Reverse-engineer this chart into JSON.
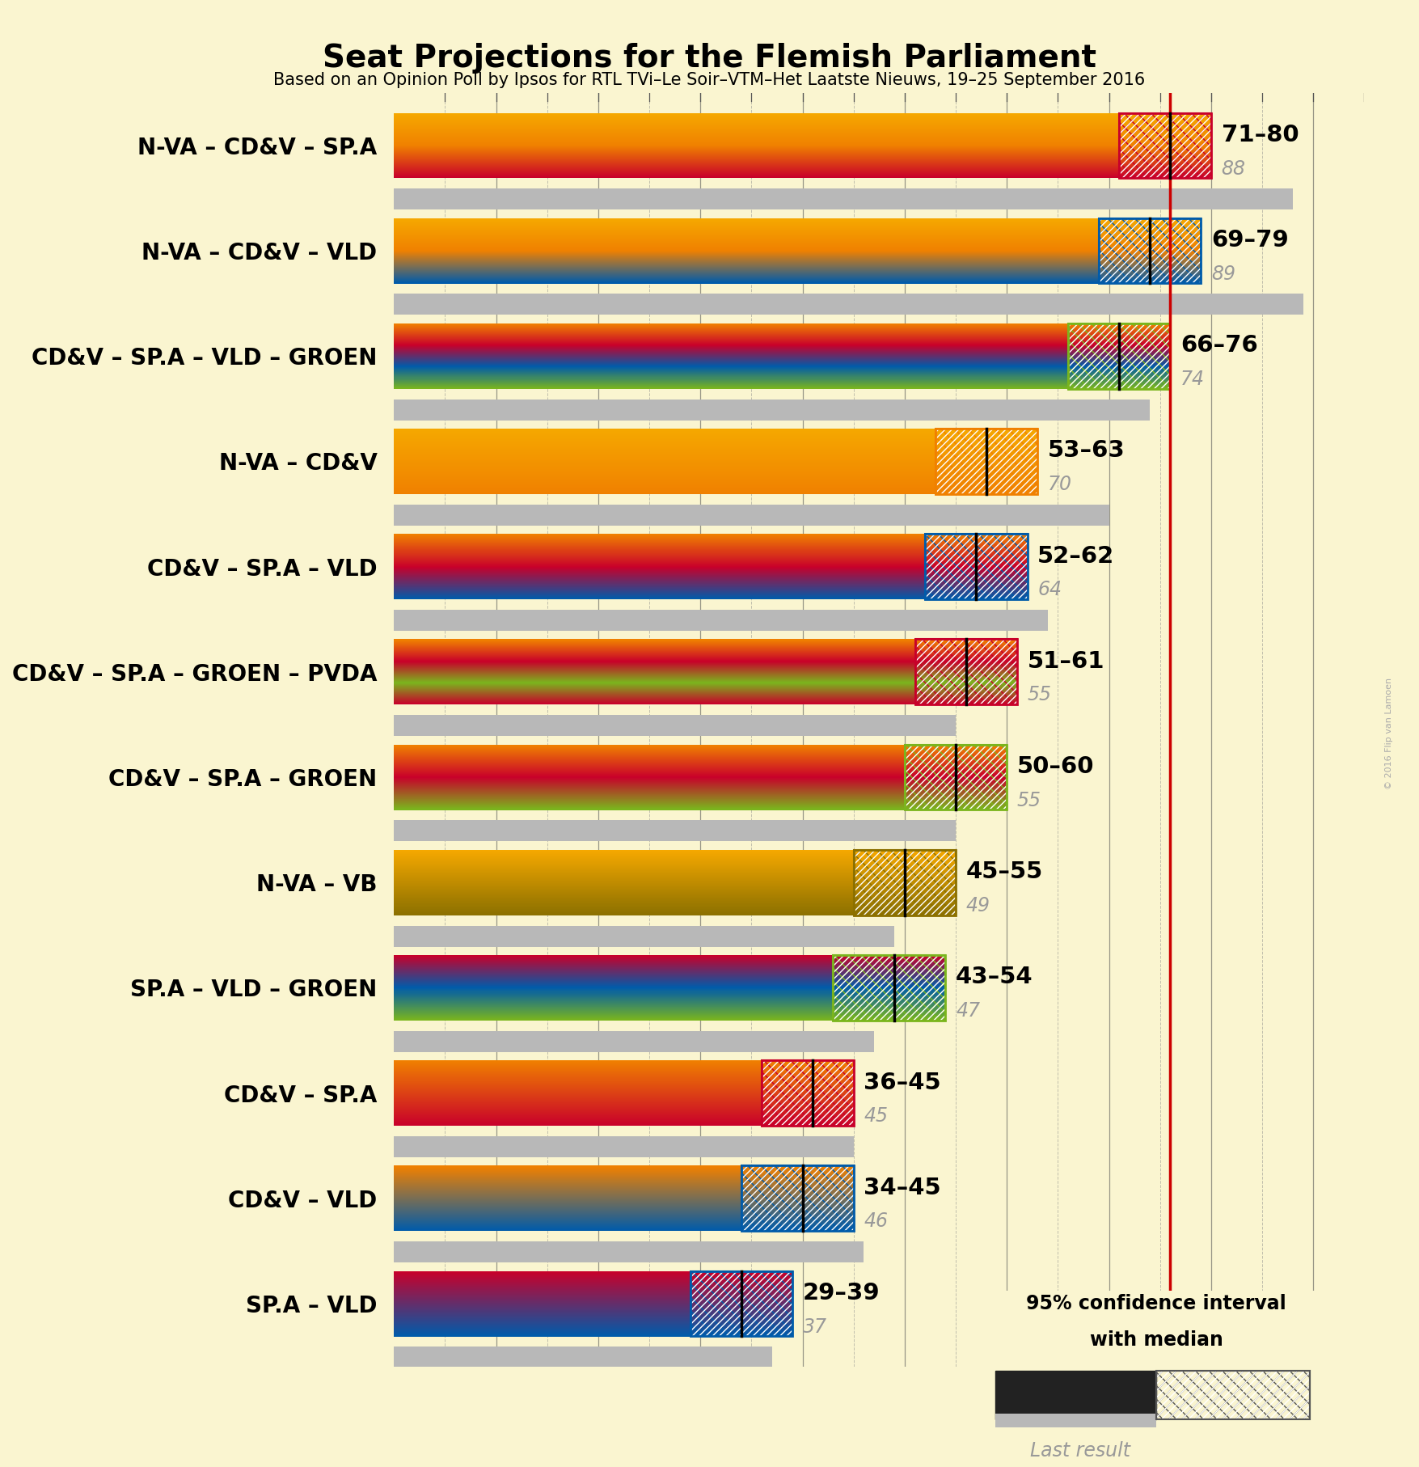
{
  "title": "Seat Projections for the Flemish Parliament",
  "subtitle": "Based on an Opinion Poll by Ipsos for RTL TVi–Le Soir–VTM–Het Laatste Nieuws, 19–25 September 2016",
  "background_color": "#faf5d0",
  "majority_line": 76,
  "coalitions": [
    {
      "label": "N-VA – CD&V – SP.A",
      "low": 71,
      "high": 80,
      "median": 76,
      "last": 88,
      "parties": [
        "N-VA",
        "CD&V",
        "SP.A"
      ]
    },
    {
      "label": "N-VA – CD&V – VLD",
      "low": 69,
      "high": 79,
      "median": 74,
      "last": 89,
      "parties": [
        "N-VA",
        "CD&V",
        "VLD"
      ]
    },
    {
      "label": "CD&V – SP.A – VLD – GROEN",
      "low": 66,
      "high": 76,
      "median": 71,
      "last": 74,
      "parties": [
        "CD&V",
        "SP.A",
        "VLD",
        "GROEN"
      ]
    },
    {
      "label": "N-VA – CD&V",
      "low": 53,
      "high": 63,
      "median": 58,
      "last": 70,
      "parties": [
        "N-VA",
        "CD&V"
      ]
    },
    {
      "label": "CD&V – SP.A – VLD",
      "low": 52,
      "high": 62,
      "median": 57,
      "last": 64,
      "parties": [
        "CD&V",
        "SP.A",
        "VLD"
      ]
    },
    {
      "label": "CD&V – SP.A – GROEN – PVDA",
      "low": 51,
      "high": 61,
      "median": 56,
      "last": 55,
      "parties": [
        "CD&V",
        "SP.A",
        "GROEN",
        "PVDA"
      ]
    },
    {
      "label": "CD&V – SP.A – GROEN",
      "low": 50,
      "high": 60,
      "median": 55,
      "last": 55,
      "parties": [
        "CD&V",
        "SP.A",
        "GROEN"
      ]
    },
    {
      "label": "N-VA – VB",
      "low": 45,
      "high": 55,
      "median": 50,
      "last": 49,
      "parties": [
        "N-VA",
        "VB"
      ]
    },
    {
      "label": "SP.A – VLD – GROEN",
      "low": 43,
      "high": 54,
      "median": 49,
      "last": 47,
      "parties": [
        "SP.A",
        "VLD",
        "GROEN"
      ]
    },
    {
      "label": "CD&V – SP.A",
      "low": 36,
      "high": 45,
      "median": 41,
      "last": 45,
      "parties": [
        "CD&V",
        "SP.A"
      ]
    },
    {
      "label": "CD&V – VLD",
      "low": 34,
      "high": 45,
      "median": 40,
      "last": 46,
      "parties": [
        "CD&V",
        "VLD"
      ]
    },
    {
      "label": "SP.A – VLD",
      "low": 29,
      "high": 39,
      "median": 34,
      "last": 37,
      "parties": [
        "SP.A",
        "VLD"
      ]
    }
  ],
  "party_colors": {
    "N-VA": "#f5a800",
    "CD&V": "#f08000",
    "SP.A": "#c8002a",
    "VLD": "#005baa",
    "GROEN": "#7ab51d",
    "VB": "#8b7000",
    "PVDA": "#c8002a"
  },
  "dashed_color": "#999999",
  "label_fontsize": 20,
  "range_fontsize": 21,
  "last_fontsize": 17,
  "legend_fontsize": 17
}
